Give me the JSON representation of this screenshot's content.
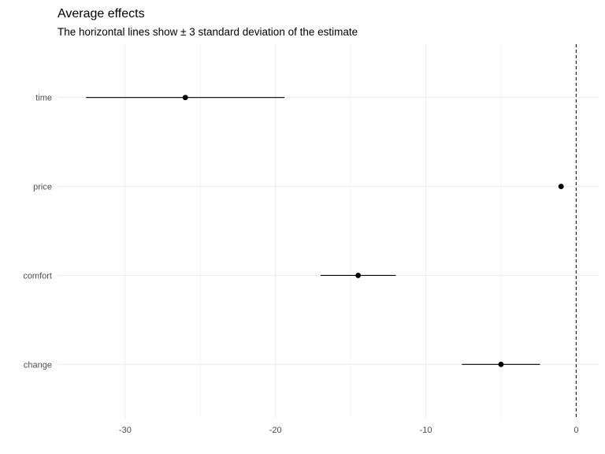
{
  "chart_data": {
    "type": "scatter",
    "title": "Average effects",
    "subtitle": "The horizontal lines show ± 3 standard deviation of the estimate",
    "xlabel": "",
    "ylabel": "",
    "xlim": [
      -34.5,
      1.5
    ],
    "x_ticks": [
      -30,
      -20,
      -10,
      0
    ],
    "x_tick_labels": [
      "-30",
      "-20",
      "-10",
      "0"
    ],
    "categories": [
      "time",
      "price",
      "comfort",
      "change"
    ],
    "estimates": [
      -26.0,
      -1.0,
      -14.5,
      -5.0
    ],
    "lower": [
      -32.6,
      -1.0,
      -17.0,
      -7.6
    ],
    "upper": [
      -19.4,
      -1.0,
      -12.0,
      -2.4
    ],
    "reference_line": {
      "x": 0,
      "style": "dashed"
    },
    "grid": true,
    "legend": "none",
    "colors": {
      "point": "#000000",
      "interval": "#000000",
      "grid": "#ebebeb",
      "tick_text": "#4d4d4d"
    }
  }
}
